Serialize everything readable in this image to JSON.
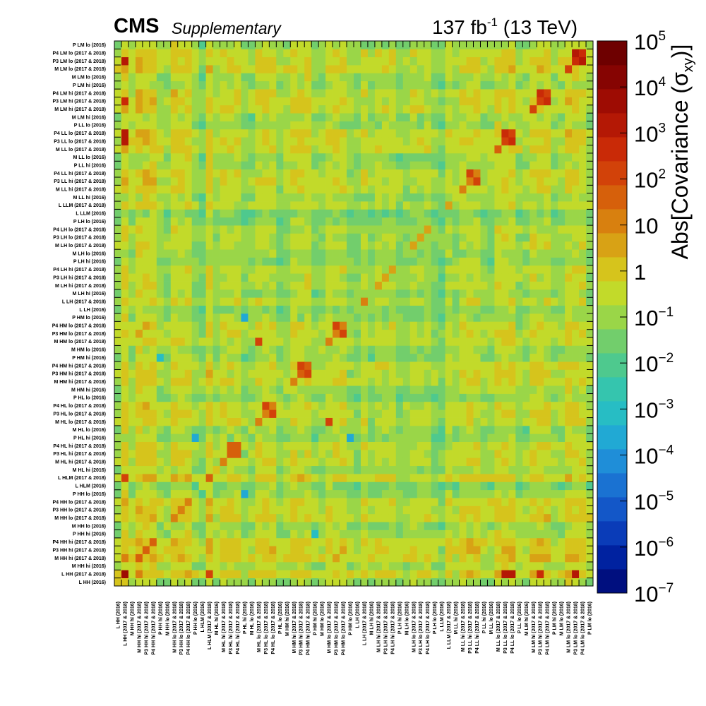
{
  "header": {
    "experiment": "CMS",
    "qualifier": "Supplementary",
    "lumi_value": "137 fb",
    "lumi_exp": "-1",
    "energy": " (13 TeV)"
  },
  "chart_data": {
    "type": "heatmap",
    "title": "",
    "zlabel": "Abs[Covariance (σxy)]",
    "zlim": [
      1e-07,
      100000.0
    ],
    "zscale": "log",
    "colorbar_ticks": [
      {
        "base": "10",
        "exp": "5"
      },
      {
        "base": "10",
        "exp": "4"
      },
      {
        "base": "10",
        "exp": "3"
      },
      {
        "base": "10",
        "exp": "2"
      },
      {
        "base": "10",
        "exp": ""
      },
      {
        "base": "1",
        "exp": ""
      },
      {
        "base": "10",
        "exp": "−1"
      },
      {
        "base": "10",
        "exp": "−2"
      },
      {
        "base": "10",
        "exp": "−3"
      },
      {
        "base": "10",
        "exp": "−4"
      },
      {
        "base": "10",
        "exp": "−5"
      },
      {
        "base": "10",
        "exp": "−6"
      },
      {
        "base": "10",
        "exp": "−7"
      }
    ],
    "bins": [
      "L HH (2016)",
      "L HH (2017 & 2018)",
      "M HH hi (2016)",
      "M HH hi (2017 & 2018)",
      "P3 HH hi (2017 & 2018)",
      "P4 HH hi (2017 & 2018)",
      "P HH hi (2016)",
      "M HH lo (2016)",
      "M HH lo (2017 & 2018)",
      "P3 HH lo (2017 & 2018)",
      "P4 HH lo (2017 & 2018)",
      "P HH lo (2016)",
      "L HLM (2016)",
      "L HLM (2017 & 2018)",
      "M HL hi (2016)",
      "M HL hi (2017 & 2018)",
      "P3 HL hi (2017 & 2018)",
      "P4 HL hi (2017 & 2018)",
      "P HL hi (2016)",
      "M HL lo (2016)",
      "M HL lo (2017 & 2018)",
      "P3 HL lo (2017 & 2018)",
      "P4 HL lo (2017 & 2018)",
      "P HL lo (2016)",
      "M HM hi (2016)",
      "M HM hi (2017 & 2018)",
      "P3 HM hi (2017 & 2018)",
      "P4 HM hi (2017 & 2018)",
      "P HM hi (2016)",
      "M HM lo (2016)",
      "M HM lo (2017 & 2018)",
      "P3 HM lo (2017 & 2018)",
      "P4 HM lo (2017 & 2018)",
      "P HM lo (2016)",
      "L LH (2016)",
      "L LH (2017 & 2018)",
      "M LH hi (2016)",
      "M LH hi (2017 & 2018)",
      "P3 LH hi (2017 & 2018)",
      "P4 LH hi (2017 & 2018)",
      "P LH hi (2016)",
      "M LH lo (2016)",
      "M LH lo (2017 & 2018)",
      "P3 LH lo (2017 & 2018)",
      "P4 LH lo (2017 & 2018)",
      "P LH lo (2016)",
      "L LLM (2016)",
      "L LLM (2017 & 2018)",
      "M LL hi (2016)",
      "M LL hi (2017 & 2018)",
      "P3 LL hi (2017 & 2018)",
      "P4 LL hi (2017 & 2018)",
      "P LL hi (2016)",
      "M LL lo (2016)",
      "M LL lo (2017 & 2018)",
      "P3 LL lo (2017 & 2018)",
      "P4 LL lo (2017 & 2018)",
      "P LL lo (2016)",
      "M LM hi (2016)",
      "M LM hi (2017 & 2018)",
      "P3 LM hi (2017 & 2018)",
      "P4 LM hi (2017 & 2018)",
      "P LM hi (2016)",
      "M LM lo (2016)",
      "M LM lo (2017 & 2018)",
      "P3 LM lo (2017 & 2018)",
      "P4 LM lo (2017 & 2018)",
      "P LM lo (2016)"
    ],
    "bin_order_note": "",
    "value_encoding": "log10",
    "row_base_log10": [
      -1.2,
      0.6,
      -0.9,
      0.4,
      0.3,
      0.3,
      -1.0,
      -1.3,
      0.1,
      -0.1,
      -0.1,
      -1.3,
      -1.8,
      0.3,
      -1.1,
      -0.3,
      -0.4,
      -0.4,
      -1.5,
      -1.5,
      -0.3,
      -0.4,
      -0.4,
      -1.4,
      -1.1,
      -0.2,
      -0.3,
      -0.3,
      -1.4,
      -1.4,
      -0.3,
      -0.4,
      -0.4,
      -1.5,
      -1.7,
      -0.6,
      -1.3,
      -0.7,
      -0.8,
      -0.8,
      -1.6,
      -1.6,
      -0.8,
      -0.9,
      -0.9,
      -1.6,
      -2.1,
      -0.6,
      -1.2,
      -0.3,
      -0.3,
      -0.3,
      -1.3,
      -1.2,
      0.0,
      0.0,
      0.0,
      -1.3,
      -1.1,
      -0.1,
      -0.1,
      -0.1,
      -1.3,
      -1.1,
      0.0,
      -0.1,
      -0.1,
      -1.2
    ],
    "diagonal_log10": [
      -0.2,
      3.5,
      -0.3,
      1.4,
      1.5,
      1.5,
      -0.8,
      -0.4,
      1.2,
      1.3,
      1.2,
      -0.8,
      -0.6,
      1.6,
      -0.2,
      1.3,
      1.4,
      1.4,
      -1.0,
      -0.4,
      1.3,
      1.3,
      1.3,
      -0.9,
      -0.5,
      1.3,
      1.4,
      1.4,
      -1.2,
      -0.5,
      1.2,
      1.3,
      1.3,
      -1.2,
      -0.9,
      1.0,
      -0.8,
      0.6,
      0.7,
      0.7,
      -1.3,
      -0.9,
      0.6,
      0.6,
      0.6,
      -1.3,
      -1.5,
      0.5,
      -0.7,
      1.0,
      1.0,
      1.1,
      -1.1,
      -0.5,
      1.6,
      2.2,
      2.0,
      -1.0,
      -0.5,
      1.9,
      2.3,
      2.1,
      -1.0,
      -0.6,
      2.0,
      2.6,
      2.5,
      -1.0
    ],
    "strong_offdiagonal": [
      {
        "x": "L HH (2017 & 2018)",
        "y": "P3 LL lo (2017 & 2018)",
        "log10": 3.2
      },
      {
        "x": "L HH (2017 & 2018)",
        "y": "P4 LL lo (2017 & 2018)",
        "log10": 3.0
      },
      {
        "x": "L HH (2017 & 2018)",
        "y": "P3 LM hi (2017 & 2018)",
        "log10": 2.8
      },
      {
        "x": "L HH (2017 & 2018)",
        "y": "P3 LM lo (2017 & 2018)",
        "log10": 3.0
      },
      {
        "x": "P3 LL lo (2017 & 2018)",
        "y": "P4 LL lo (2017 & 2018)",
        "log10": 2.7
      },
      {
        "x": "P3 LM hi (2017 & 2018)",
        "y": "P4 LM hi (2017 & 2018)",
        "log10": 2.6
      },
      {
        "x": "P3 LM lo (2017 & 2018)",
        "y": "P4 LM lo (2017 & 2018)",
        "log10": 3.3
      },
      {
        "x": "P3 LL hi (2017 & 2018)",
        "y": "P4 LL hi (2017 & 2018)",
        "log10": 2.2
      },
      {
        "x": "P3 HM lo (2017 & 2018)",
        "y": "P4 HM lo (2017 & 2018)",
        "log10": 2.0
      },
      {
        "x": "P3 HL lo (2017 & 2018)",
        "y": "P4 HL lo (2017 & 2018)",
        "log10": 2.0
      },
      {
        "x": "P3 HM hi (2017 & 2018)",
        "y": "P4 HM hi (2017 & 2018)",
        "log10": 2.0
      },
      {
        "x": "P3 HL hi (2017 & 2018)",
        "y": "P4 HL hi (2017 & 2018)",
        "log10": 1.8
      },
      {
        "x": "L HH (2017 & 2018)",
        "y": "L HLM (2017 & 2018)",
        "log10": 2.0
      },
      {
        "x": "M HL lo (2017 & 2018)",
        "y": "M HM lo (2017 & 2018)",
        "log10": 2.0
      },
      {
        "x": "P HL hi (2016)",
        "y": "P HM lo (2016)",
        "log10": -3.6
      },
      {
        "x": "P HL hi (2016)",
        "y": "P HH lo (2016)",
        "log10": -3.5
      },
      {
        "x": "P HM hi (2016)",
        "y": "P HH hi (2016)",
        "log10": -3.3
      }
    ],
    "colors": {
      "palette": [
        "#000f7f",
        "#0022a0",
        "#0a3cb8",
        "#1357c8",
        "#1a72d2",
        "#1f8ed8",
        "#21a9d4",
        "#27bdc4",
        "#35c5ae",
        "#4ec98e",
        "#72ce6c",
        "#9ad648",
        "#c2da2a",
        "#d6c41c",
        "#d8a215",
        "#d8800f",
        "#d6600b",
        "#d24209",
        "#c92a07",
        "#b41805",
        "#9e0c03",
        "#860402",
        "#6e0000"
      ]
    }
  }
}
